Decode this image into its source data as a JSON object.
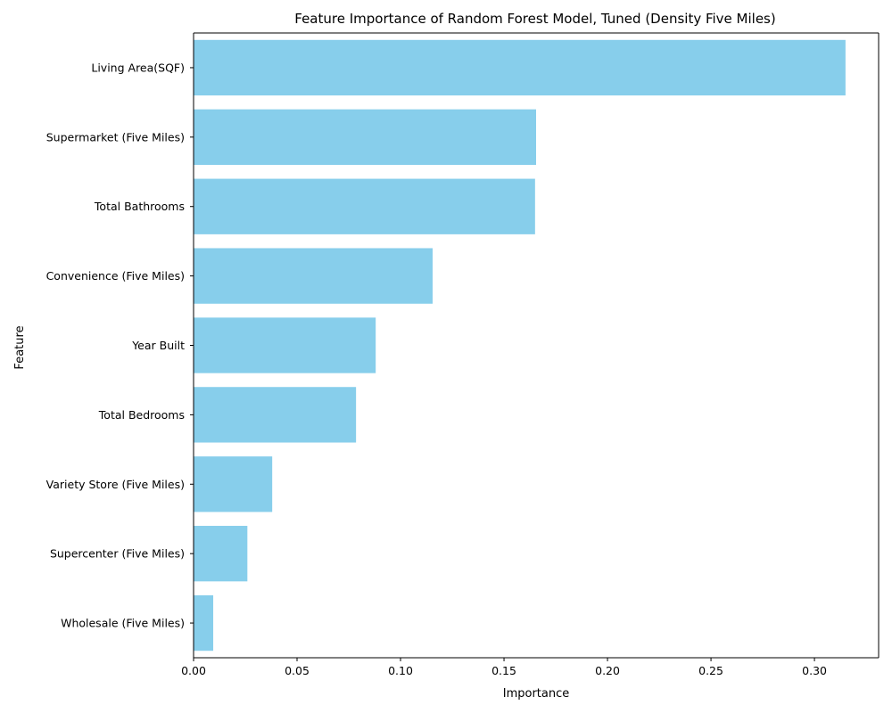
{
  "chart_data": {
    "type": "bar",
    "orientation": "horizontal",
    "title": "Feature Importance of Random Forest Model, Tuned (Density Five Miles)",
    "xlabel": "Importance",
    "ylabel": "Feature",
    "categories": [
      "Living Area(SQF)",
      "Supermarket (Five Miles)",
      "Total Bathrooms",
      "Convenience (Five Miles)",
      "Year Built",
      "Total Bedrooms",
      "Variety Store (Five Miles)",
      "Supercenter (Five Miles)",
      "Wholesale (Five Miles)"
    ],
    "values": [
      0.315,
      0.1655,
      0.165,
      0.1155,
      0.088,
      0.0785,
      0.038,
      0.026,
      0.0095
    ],
    "xlim": [
      0,
      0.331
    ],
    "xticks": [
      0.0,
      0.05,
      0.1,
      0.15,
      0.2,
      0.25,
      0.3
    ],
    "xtick_labels": [
      "0.00",
      "0.05",
      "0.10",
      "0.15",
      "0.20",
      "0.25",
      "0.30"
    ],
    "bar_color": "#87ceeb",
    "grid": false,
    "legend": "none"
  }
}
